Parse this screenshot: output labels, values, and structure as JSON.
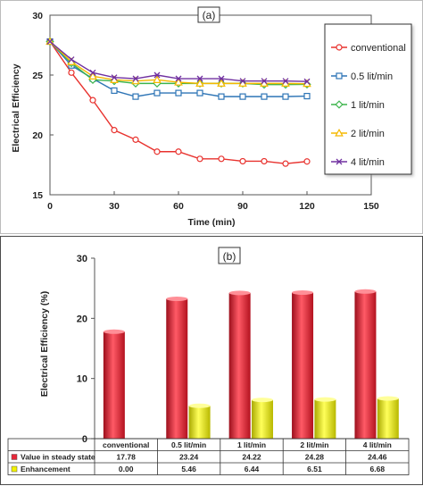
{
  "chart_data": [
    {
      "type": "line",
      "panel_label": "(a)",
      "xlabel": "Time (min)",
      "ylabel": "Electrical Efficiency",
      "xlim": [
        0,
        150
      ],
      "ylim": [
        15,
        30
      ],
      "xticks": [
        0,
        30,
        60,
        90,
        120,
        150
      ],
      "yticks": [
        15,
        20,
        25,
        30
      ],
      "grid": false,
      "legend_position": "right",
      "x": [
        0,
        10,
        20,
        30,
        40,
        50,
        60,
        70,
        80,
        90,
        100,
        110,
        120
      ],
      "series": [
        {
          "name": "conventional",
          "color": "#e8322e",
          "marker": "circle",
          "values": [
            27.8,
            25.2,
            22.9,
            20.4,
            19.6,
            18.6,
            18.6,
            18.0,
            18.0,
            17.8,
            17.8,
            17.6,
            17.78
          ]
        },
        {
          "name": "0.5 lit/min",
          "color": "#2e75b6",
          "marker": "square",
          "values": [
            27.8,
            25.8,
            24.7,
            23.7,
            23.2,
            23.5,
            23.5,
            23.5,
            23.2,
            23.2,
            23.2,
            23.2,
            23.24
          ]
        },
        {
          "name": "1 lit/min",
          "color": "#3cb44b",
          "marker": "diamond",
          "values": [
            27.8,
            26.0,
            24.6,
            24.5,
            24.3,
            24.3,
            24.3,
            24.3,
            24.3,
            24.3,
            24.2,
            24.2,
            24.22
          ]
        },
        {
          "name": "2 lit/min",
          "color": "#f5b800",
          "marker": "triangle",
          "values": [
            27.8,
            26.1,
            24.9,
            24.6,
            24.5,
            24.6,
            24.4,
            24.3,
            24.3,
            24.3,
            24.3,
            24.3,
            24.28
          ]
        },
        {
          "name": "4 lit/min",
          "color": "#7030a0",
          "marker": "x",
          "values": [
            27.8,
            26.3,
            25.2,
            24.8,
            24.7,
            25.0,
            24.7,
            24.7,
            24.7,
            24.5,
            24.5,
            24.5,
            24.46
          ]
        }
      ]
    },
    {
      "type": "bar",
      "panel_label": "(b)",
      "ylabel": "Electrical Efficiency (%)",
      "ylim": [
        0,
        30
      ],
      "yticks": [
        0,
        10,
        20,
        30
      ],
      "grid": false,
      "categories": [
        "conventional",
        "0.5 lit/min",
        "1 lit/min",
        "2 lit/min",
        "4 lit/min"
      ],
      "series": [
        {
          "name": "Value in steady state",
          "color": "#e8283a",
          "values": [
            17.78,
            23.24,
            24.22,
            24.28,
            24.46
          ],
          "labels": [
            "17.78",
            "23.24",
            "24.22",
            "24.28",
            "24.46"
          ]
        },
        {
          "name": "Enhancement",
          "color": "#f2f200",
          "values": [
            0.0,
            5.46,
            6.44,
            6.51,
            6.68
          ],
          "labels": [
            "0.00",
            "5.46",
            "6.44",
            "6.51",
            "6.68"
          ]
        }
      ]
    }
  ]
}
